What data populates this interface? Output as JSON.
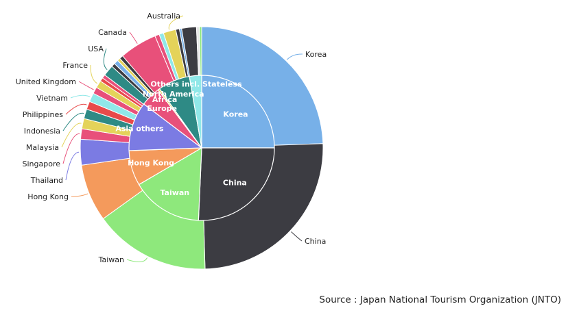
{
  "source_text": "Source : Japan National Tourism Organization (JNTO)",
  "chart_data": {
    "type": "pie",
    "variant": "sunburst",
    "title": "",
    "outer_ring": [
      {
        "label": "Korea",
        "value": 24.9,
        "color": "#77b0e8"
      },
      {
        "label": "China",
        "value": 25.6,
        "color": "#3c3c42"
      },
      {
        "label": "Taiwan",
        "value": 15.8,
        "color": "#8ee87c"
      },
      {
        "label": "Hong Kong",
        "value": 7.8,
        "color": "#f49a5c"
      },
      {
        "label": "Thailand",
        "value": 3.5,
        "color": "#7b7be3"
      },
      {
        "label": "Singapore",
        "value": 1.4,
        "color": "#e8507a"
      },
      {
        "label": "Malaysia",
        "value": 1.4,
        "color": "#e4d35a"
      },
      {
        "label": "Indonesia",
        "value": 1.3,
        "color": "#2e8a85"
      },
      {
        "label": "Philippines",
        "value": 1.1,
        "color": "#e84a4a"
      },
      {
        "label": "Vietnam",
        "value": 1.2,
        "color": "#90e8e8"
      },
      {
        "label": "United Kingdom",
        "value": 0.9,
        "color": "#e8507a"
      },
      {
        "label": "France",
        "value": 1.0,
        "color": "#e4d35a"
      },
      {
        "label": "USA",
        "value": 1.5,
        "color": "#2e8a85"
      },
      {
        "label": "Canada",
        "value": 5.1,
        "color": "#e8507a"
      },
      {
        "label": "Australia",
        "value": 1.7,
        "color": "#e4d35a"
      }
    ],
    "outer_unlabeled_slices": [
      {
        "value": 0.5,
        "color": "#e84a4a"
      },
      {
        "value": 0.5,
        "color": "#e8507a"
      },
      {
        "value": 0.5,
        "color": "#3c3c42"
      },
      {
        "value": 0.6,
        "color": "#77b0e8"
      },
      {
        "value": 0.4,
        "color": "#e4d35a"
      },
      {
        "value": 0.5,
        "color": "#3c3c42"
      },
      {
        "value": 0.6,
        "color": "#e8507a"
      },
      {
        "value": 0.6,
        "color": "#90e8e8"
      },
      {
        "value": 0.5,
        "color": "#3c3c42"
      },
      {
        "value": 0.3,
        "color": "#77b0e8"
      },
      {
        "value": 2.0,
        "color": "#3c3c42"
      },
      {
        "value": 0.4,
        "color": "#e8e8e8"
      },
      {
        "value": 0.3,
        "color": "#8ee87c"
      }
    ],
    "inner_ring": [
      {
        "label": "Korea",
        "value": 24.9,
        "color": "#77b0e8"
      },
      {
        "label": "China",
        "value": 25.6,
        "color": "#3c3c42"
      },
      {
        "label": "Taiwan",
        "value": 15.8,
        "color": "#8ee87c"
      },
      {
        "label": "Hong Kong",
        "value": 7.8,
        "color": "#f49a5c"
      },
      {
        "label": "Asia others",
        "value": 10.9,
        "color": "#7b7be3"
      },
      {
        "label": "Europe",
        "value": 4.4,
        "color": "#e8507a"
      },
      {
        "label": "Africa",
        "value": 0.4,
        "color": "#e4d35a"
      },
      {
        "label": "North America",
        "value": 7.1,
        "color": "#2e8a85"
      },
      {
        "label": "Others incl. Stateless",
        "value": 2.7,
        "color": "#90e8e8"
      }
    ]
  }
}
